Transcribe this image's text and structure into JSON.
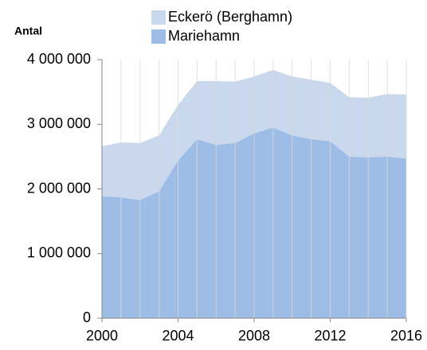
{
  "chart_data": {
    "type": "stacked-area",
    "y_label": "Antal",
    "x": [
      2000,
      2001,
      2002,
      2003,
      2004,
      2005,
      2006,
      2007,
      2008,
      2009,
      2010,
      2011,
      2012,
      2013,
      2014,
      2015,
      2016
    ],
    "series": [
      {
        "name": "Mariehamn",
        "color": "#9dbde6",
        "values": [
          1890000,
          1870000,
          1830000,
          1960000,
          2440000,
          2770000,
          2680000,
          2710000,
          2860000,
          2950000,
          2830000,
          2770000,
          2740000,
          2500000,
          2490000,
          2500000,
          2470000
        ]
      },
      {
        "name": "Eckerö (Berghamn)",
        "color": "#c9d8ec",
        "values": [
          770000,
          850000,
          880000,
          870000,
          860000,
          900000,
          990000,
          950000,
          880000,
          890000,
          910000,
          920000,
          900000,
          920000,
          920000,
          970000,
          990000
        ]
      }
    ],
    "xlim": [
      2000,
      2016
    ],
    "xticks": [
      2000,
      2004,
      2008,
      2012,
      2016
    ],
    "ylim": [
      0,
      4000000
    ],
    "yticks": [
      0,
      {
        "value": 1000000,
        "label": "1 000 000"
      },
      {
        "value": 2000000,
        "label": "2 000 000"
      },
      {
        "value": 3000000,
        "label": "3 000 000"
      },
      {
        "value": 4000000,
        "label": "4 000 000"
      }
    ],
    "grid": "x"
  }
}
